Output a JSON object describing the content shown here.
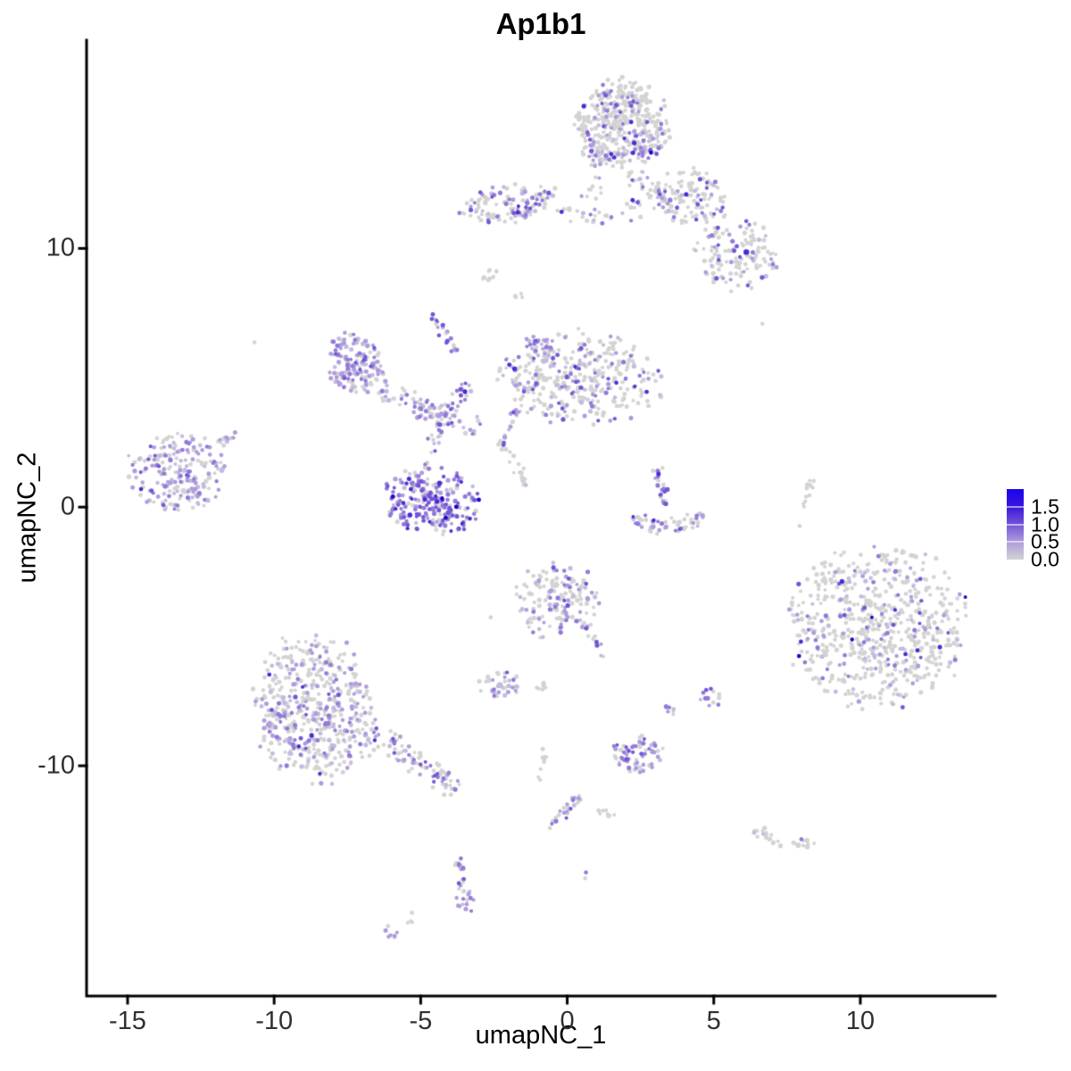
{
  "chart_data": {
    "type": "scatter",
    "title": "Ap1b1",
    "xlabel": "umapNC_1",
    "ylabel": "umapNC_2",
    "xlim": [
      -16.4,
      14.6
    ],
    "ylim": [
      -18.9,
      18.05
    ],
    "x_ticks": [
      -15,
      -10,
      -5,
      0,
      5,
      10
    ],
    "y_ticks": [
      -10,
      0,
      10
    ],
    "grid": false,
    "legend_position": "right",
    "point_radius_px": 2.3,
    "palette": [
      "#D3D3D3",
      "#C3BADF",
      "#AF9CDC",
      "#9379D8",
      "#7356D5",
      "#4A2BD3",
      "#1A05C9"
    ],
    "styles": {
      "axis_line": "#000000",
      "tick_label": "#303030",
      "background": "#ffffff"
    },
    "legend": {
      "max_value": 2.0,
      "ticks": [
        {
          "value": 1.5,
          "label": "1.5"
        },
        {
          "value": 1.0,
          "label": "1.0"
        },
        {
          "value": 0.5,
          "label": "0.5"
        },
        {
          "value": 0.0,
          "label": "0.0"
        }
      ],
      "gradient": [
        "#D3D3D3",
        "#AF9CDC",
        "#7356D5",
        "#3B16DC",
        "#1B02EF"
      ]
    },
    "clusters": [
      {
        "name": "top-main",
        "shape": "blob",
        "cx": 1.85,
        "cy": 14.77,
        "rx": 1.52,
        "ry": 1.66,
        "rot": -10,
        "n": 420,
        "colors": [
          0.82,
          0.05,
          0.05,
          0.04,
          0.03,
          0.009,
          0.001
        ]
      },
      {
        "name": "top-main-band",
        "shape": "strand",
        "x1": 0.73,
        "y1": 13.39,
        "x2": 3.4,
        "y2": 13.84,
        "width": 0.25,
        "n": 26,
        "colors": [
          0.2,
          0.1,
          0.2,
          0.25,
          0.2,
          0.05,
          0
        ]
      },
      {
        "name": "top-tail",
        "shape": "strand",
        "x1": 2.04,
        "y1": 12.98,
        "x2": 3.68,
        "y2": 11.73,
        "width": 0.45,
        "n": 40,
        "colors": [
          0.75,
          0.08,
          0.08,
          0.05,
          0.04,
          0,
          0
        ]
      },
      {
        "name": "top-under",
        "shape": "blob",
        "cx": 0.88,
        "cy": 12.35,
        "rx": 0.5,
        "ry": 0.5,
        "rot": 0,
        "n": 10,
        "colors": [
          0.8,
          0.1,
          0.1,
          0,
          0,
          0,
          0
        ]
      },
      {
        "name": "band-left",
        "shape": "blob",
        "cx": -1.95,
        "cy": 11.73,
        "rx": 1.67,
        "ry": 0.73,
        "rot": 8,
        "n": 120,
        "colors": [
          0.52,
          0.13,
          0.15,
          0.12,
          0.06,
          0.02,
          0
        ]
      },
      {
        "name": "band-tail",
        "shape": "strand",
        "x1": -0.43,
        "y1": 11.42,
        "x2": 1.58,
        "y2": 11.14,
        "width": 0.3,
        "n": 22,
        "colors": [
          0.6,
          0.1,
          0.12,
          0.1,
          0.06,
          0.02,
          0
        ]
      },
      {
        "name": "mid-dots",
        "shape": "blob",
        "cx": 2.25,
        "cy": 11.49,
        "rx": 0.4,
        "ry": 0.55,
        "rot": 0,
        "n": 12,
        "colors": [
          0.65,
          0.1,
          0.1,
          0.05,
          0.05,
          0.05,
          0
        ]
      },
      {
        "name": "upper-right",
        "shape": "blob",
        "cx": 4.22,
        "cy": 11.97,
        "rx": 1.3,
        "ry": 1.05,
        "rot": -15,
        "n": 110,
        "colors": [
          0.75,
          0.07,
          0.08,
          0.05,
          0.04,
          0.01,
          0
        ]
      },
      {
        "name": "upper-right-lower",
        "shape": "blob",
        "cx": 5.78,
        "cy": 9.76,
        "rx": 1.4,
        "ry": 1.35,
        "rot": -30,
        "n": 130,
        "colors": [
          0.78,
          0.06,
          0.07,
          0.05,
          0.03,
          0.01,
          0
        ]
      },
      {
        "name": "comma",
        "shape": "strand",
        "x1": -2.92,
        "y1": 8.75,
        "x2": -2.4,
        "y2": 9.2,
        "width": 0.18,
        "n": 10,
        "colors": [
          1,
          0,
          0,
          0,
          0,
          0,
          0
        ]
      },
      {
        "name": "neck-strand",
        "shape": "strand",
        "x1": -4.65,
        "y1": 7.54,
        "x2": -3.86,
        "y2": 5.99,
        "width": 0.2,
        "n": 22,
        "colors": [
          0.4,
          0.14,
          0.18,
          0.14,
          0.14,
          0,
          0
        ]
      },
      {
        "name": "gray-pair",
        "shape": "blob",
        "cx": -1.61,
        "cy": 8.13,
        "rx": 0.25,
        "ry": 0.2,
        "rot": 0,
        "n": 4,
        "colors": [
          1,
          0,
          0,
          0,
          0,
          0,
          0
        ]
      },
      {
        "name": "left-mid",
        "shape": "blob",
        "cx": -7.23,
        "cy": 5.57,
        "rx": 0.95,
        "ry": 1.15,
        "rot": 20,
        "n": 165,
        "colors": [
          0.36,
          0.2,
          0.24,
          0.15,
          0.05,
          0,
          0
        ]
      },
      {
        "name": "left-mid-tail",
        "shape": "strand",
        "x1": -6.38,
        "y1": 4.53,
        "x2": -3.04,
        "y2": 3.04,
        "width": 0.45,
        "n": 65,
        "colors": [
          0.5,
          0.15,
          0.16,
          0.12,
          0.06,
          0.01,
          0
        ]
      },
      {
        "name": "tail-hotspot",
        "shape": "blob",
        "cx": -4.89,
        "cy": 3.77,
        "rx": 0.38,
        "ry": 0.45,
        "rot": 0,
        "n": 16,
        "colors": [
          0.12,
          0.2,
          0.38,
          0.25,
          0.05,
          0,
          0
        ]
      },
      {
        "name": "center",
        "shape": "blob",
        "cx": 0.43,
        "cy": 4.98,
        "rx": 2.6,
        "ry": 1.7,
        "rot": 0,
        "n": 380,
        "colors": [
          0.69,
          0.09,
          0.1,
          0.07,
          0.04,
          0.01,
          0
        ]
      },
      {
        "name": "center-hot",
        "shape": "blob",
        "cx": -1.0,
        "cy": 6.09,
        "rx": 0.55,
        "ry": 0.5,
        "rot": 0,
        "n": 32,
        "colors": [
          0.25,
          0.2,
          0.28,
          0.17,
          0.1,
          0,
          0
        ]
      },
      {
        "name": "center-left-tail",
        "shape": "strand",
        "x1": -1.79,
        "y1": 3.81,
        "x2": -2.22,
        "y2": 2.32,
        "width": 0.2,
        "n": 14,
        "colors": [
          0.45,
          0.15,
          0.2,
          0.1,
          0.1,
          0,
          0
        ]
      },
      {
        "name": "far-left",
        "shape": "blob",
        "cx": -13.34,
        "cy": 1.35,
        "rx": 1.55,
        "ry": 1.45,
        "rot": -15,
        "n": 210,
        "colors": [
          0.34,
          0.18,
          0.25,
          0.16,
          0.06,
          0.01,
          0
        ]
      },
      {
        "name": "far-left-tail",
        "shape": "strand",
        "x1": -11.88,
        "y1": 2.49,
        "x2": -11.12,
        "y2": 2.98,
        "width": 0.2,
        "n": 12,
        "colors": [
          0.5,
          0.15,
          0.2,
          0.1,
          0.05,
          0,
          0
        ]
      },
      {
        "name": "crescent-core",
        "shape": "blob",
        "cx": -4.65,
        "cy": 0.21,
        "rx": 1.6,
        "ry": 1.3,
        "rot": -8,
        "n": 235,
        "colors": [
          0.17,
          0.1,
          0.18,
          0.23,
          0.2,
          0.09,
          0.03
        ]
      },
      {
        "name": "crescent-arc",
        "shape": "strand",
        "x1": -3.22,
        "y1": 4.91,
        "mx": -4.23,
        "my": 3.81,
        "x2": -4.83,
        "y2": 1.52,
        "width": 0.3,
        "n": 48,
        "colors": [
          0.42,
          0.12,
          0.16,
          0.15,
          0.12,
          0.03,
          0
        ]
      },
      {
        "name": "crescent-right-strand",
        "shape": "strand",
        "x1": -2.31,
        "y1": 2.63,
        "x2": -1.28,
        "y2": 0.69,
        "width": 0.22,
        "n": 20,
        "colors": [
          0.55,
          0.1,
          0.15,
          0.1,
          0.1,
          0,
          0
        ]
      },
      {
        "name": "check-stem",
        "shape": "strand",
        "x1": 3.07,
        "y1": 1.56,
        "x2": 3.4,
        "y2": 0.14,
        "width": 0.2,
        "n": 24,
        "colors": [
          0.3,
          0.08,
          0.14,
          0.2,
          0.22,
          0.06,
          0
        ]
      },
      {
        "name": "check-arc",
        "shape": "strand",
        "x1": 2.16,
        "y1": -0.28,
        "mx": 3.31,
        "my": -1.31,
        "x2": 4.71,
        "y2": -0.31,
        "width": 0.35,
        "n": 58,
        "colors": [
          0.62,
          0.08,
          0.1,
          0.1,
          0.08,
          0.02,
          0
        ]
      },
      {
        "name": "right-wisp",
        "shape": "strand",
        "x1": 8.36,
        "y1": 1.07,
        "x2": 7.99,
        "y2": -0.31,
        "width": 0.15,
        "n": 13,
        "colors": [
          0.95,
          0.05,
          0,
          0,
          0,
          0,
          0
        ]
      },
      {
        "name": "big-right",
        "shape": "blob",
        "cx": 10.52,
        "cy": -4.6,
        "rx": 2.95,
        "ry": 2.95,
        "rot": 15,
        "n": 640,
        "colors": [
          0.8,
          0.05,
          0.05,
          0.05,
          0.035,
          0.012,
          0.003
        ]
      },
      {
        "name": "center-bottom",
        "shape": "blob",
        "cx": -0.36,
        "cy": -3.6,
        "rx": 1.4,
        "ry": 1.4,
        "rot": 0,
        "n": 150,
        "colors": [
          0.6,
          0.11,
          0.13,
          0.1,
          0.05,
          0.01,
          0
        ]
      },
      {
        "name": "center-bottom-tail",
        "shape": "strand",
        "x1": 0.49,
        "y1": -4.5,
        "mx": 0.97,
        "my": -4.98,
        "x2": 1.22,
        "y2": -5.81,
        "width": 0.2,
        "n": 16,
        "colors": [
          0.35,
          0.1,
          0.15,
          0.2,
          0.15,
          0.05,
          0
        ]
      },
      {
        "name": "small-left",
        "shape": "blob",
        "cx": -2.28,
        "cy": -6.85,
        "rx": 0.75,
        "ry": 0.6,
        "rot": 0,
        "n": 40,
        "colors": [
          0.52,
          0.12,
          0.15,
          0.13,
          0.08,
          0,
          0
        ]
      },
      {
        "name": "small-pair",
        "shape": "blob",
        "cx": -0.91,
        "cy": -6.96,
        "rx": 0.25,
        "ry": 0.28,
        "rot": 0,
        "n": 6,
        "colors": [
          1,
          0,
          0,
          0,
          0,
          0,
          0
        ]
      },
      {
        "name": "mini-strand",
        "shape": "strand",
        "x1": 3.37,
        "y1": -7.58,
        "x2": 3.65,
        "y2": -8.03,
        "width": 0.15,
        "n": 8,
        "colors": [
          0.3,
          0.2,
          0.3,
          0.2,
          0,
          0,
          0
        ]
      },
      {
        "name": "small-right",
        "shape": "blob",
        "cx": 4.98,
        "cy": -7.34,
        "rx": 0.42,
        "ry": 0.48,
        "rot": 0,
        "n": 14,
        "colors": [
          0.3,
          0.15,
          0.2,
          0.25,
          0.1,
          0,
          0
        ]
      },
      {
        "name": "bottom-hot",
        "shape": "blob",
        "cx": 2.43,
        "cy": -9.55,
        "rx": 0.9,
        "ry": 0.7,
        "rot": 0,
        "n": 64,
        "colors": [
          0.22,
          0.15,
          0.32,
          0.23,
          0.08,
          0,
          0
        ]
      },
      {
        "name": "thin-strand",
        "shape": "strand",
        "x1": -0.73,
        "y1": -9.31,
        "x2": -0.91,
        "y2": -10.55,
        "width": 0.12,
        "n": 9,
        "colors": [
          1,
          0,
          0,
          0,
          0,
          0,
          0
        ]
      },
      {
        "name": "diag-strand",
        "shape": "strand",
        "x1": 0.46,
        "y1": -11.07,
        "x2": -0.61,
        "y2": -12.42,
        "width": 0.2,
        "n": 26,
        "colors": [
          0.45,
          0.12,
          0.2,
          0.13,
          0.1,
          0,
          0
        ]
      },
      {
        "name": "gray-bits",
        "shape": "blob",
        "cx": 1.37,
        "cy": -11.9,
        "rx": 0.4,
        "ry": 0.22,
        "rot": -10,
        "n": 9,
        "colors": [
          1,
          0,
          0,
          0,
          0,
          0,
          0
        ]
      },
      {
        "name": "right-comma",
        "shape": "strand",
        "x1": 6.38,
        "y1": -12.46,
        "mx": 7.54,
        "my": -13.18,
        "x2": 8.42,
        "y2": -13.01,
        "width": 0.22,
        "n": 30,
        "colors": [
          0.97,
          0.03,
          0,
          0,
          0,
          0,
          0
        ]
      },
      {
        "name": "bottom-strand",
        "shape": "strand",
        "x1": -3.74,
        "y1": -13.53,
        "x2": -3.43,
        "y2": -15.36,
        "width": 0.18,
        "n": 24,
        "colors": [
          0.5,
          0.1,
          0.18,
          0.12,
          0.1,
          0,
          0
        ]
      },
      {
        "name": "bottom-strand-hot",
        "shape": "blob",
        "cx": -3.47,
        "cy": -15.26,
        "rx": 0.3,
        "ry": 0.45,
        "rot": 0,
        "n": 12,
        "colors": [
          0.1,
          0.2,
          0.4,
          0.3,
          0,
          0,
          0
        ]
      },
      {
        "name": "tail-gray",
        "shape": "blob",
        "cx": -5.32,
        "cy": -15.88,
        "rx": 0.22,
        "ry": 0.28,
        "rot": 0,
        "n": 5,
        "colors": [
          1,
          0,
          0,
          0,
          0,
          0,
          0
        ]
      },
      {
        "name": "tail-purple",
        "shape": "blob",
        "cx": -5.99,
        "cy": -16.33,
        "rx": 0.26,
        "ry": 0.34,
        "rot": 0,
        "n": 7,
        "colors": [
          0.2,
          0.3,
          0.35,
          0.15,
          0,
          0,
          0
        ]
      },
      {
        "name": "bottom-left",
        "shape": "blob",
        "cx": -8.63,
        "cy": -7.72,
        "rx": 1.95,
        "ry": 2.8,
        "rot": 8,
        "n": 520,
        "colors": [
          0.6,
          0.14,
          0.15,
          0.08,
          0.025,
          0.005,
          0
        ]
      },
      {
        "name": "bottom-left-tail",
        "shape": "strand",
        "x1": -6.87,
        "y1": -8.58,
        "x2": -3.77,
        "y2": -10.93,
        "width": 0.5,
        "n": 90,
        "colors": [
          0.56,
          0.12,
          0.15,
          0.11,
          0.05,
          0.01,
          0
        ]
      }
    ],
    "singles": [
      {
        "x": 2.86,
        "y": 13.7,
        "c": 6
      },
      {
        "x": 6.11,
        "y": 9.86,
        "c": 5,
        "r": 3.2
      },
      {
        "x": 7.99,
        "y": -12.84,
        "c": 3
      },
      {
        "x": 0.64,
        "y": -14.12,
        "c": 3
      },
      {
        "x": 0.61,
        "y": -14.35,
        "c": 0
      },
      {
        "x": 6.66,
        "y": 7.09,
        "c": 0
      },
      {
        "x": -10.67,
        "y": 6.37,
        "c": 0
      },
      {
        "x": -2.16,
        "y": 2.49,
        "c": 4
      },
      {
        "x": 7.93,
        "y": -0.73,
        "c": 0
      },
      {
        "x": -2.61,
        "y": -4.26,
        "c": 0
      }
    ]
  }
}
